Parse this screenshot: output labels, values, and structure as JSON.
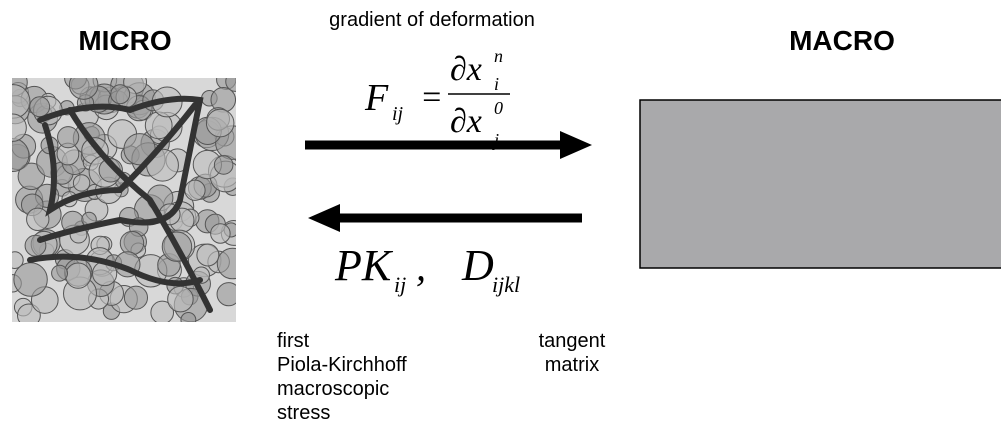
{
  "micro_title": "MICRO",
  "macro_title": "MACRO",
  "forward": {
    "caption": "gradient of deformation",
    "formula": {
      "lhs": "F",
      "lhs_sub": "ij",
      "equals": "=",
      "num": "∂x",
      "num_sub": "i",
      "num_sup": "n",
      "den": "∂x",
      "den_sub": "j",
      "den_sup": "0"
    }
  },
  "backward": {
    "formula": {
      "stress": "PK",
      "stress_sub": "ij",
      "comma": ",",
      "tangent": "D",
      "tangent_sub": "ijkl"
    },
    "stress_label": [
      "first",
      "Piola-Kirchhoff",
      "macroscopic",
      "stress"
    ],
    "tangent_label": [
      "tangent",
      "matrix"
    ]
  }
}
